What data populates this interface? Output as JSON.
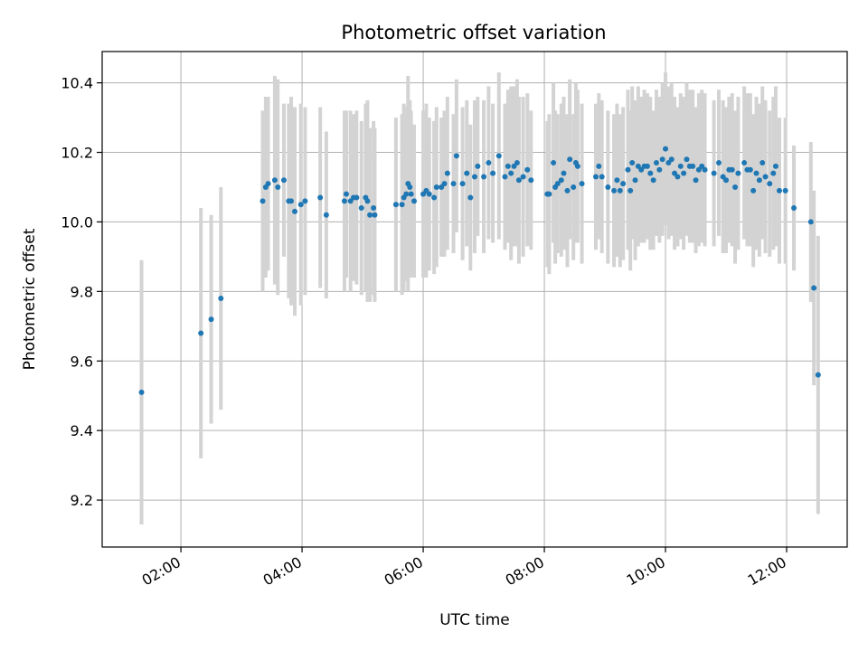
{
  "chart_data": {
    "type": "scatter",
    "title": "Photometric offset variation",
    "xlabel": "UTC time",
    "ylabel": "Photometric offset",
    "x_unit": "hours UTC",
    "xlim": [
      0.7,
      13.0
    ],
    "ylim": [
      9.065,
      10.49
    ],
    "grid": true,
    "x_ticks": [
      {
        "value": 2,
        "label": "02:00"
      },
      {
        "value": 4,
        "label": "04:00"
      },
      {
        "value": 6,
        "label": "06:00"
      },
      {
        "value": 8,
        "label": "08:00"
      },
      {
        "value": 10,
        "label": "10:00"
      },
      {
        "value": 12,
        "label": "12:00"
      }
    ],
    "y_ticks": [
      9.2,
      9.4,
      9.6,
      9.8,
      10.0,
      10.2,
      10.4
    ],
    "colors": {
      "point": "#1f77b4",
      "errorbar": "#d3d3d3",
      "grid": "#b0b0b0"
    },
    "series": [
      {
        "name": "Photometric offset",
        "points": [
          [
            1.35,
            9.51,
            0.38
          ],
          [
            2.33,
            9.68,
            0.36
          ],
          [
            2.5,
            9.72,
            0.3
          ],
          [
            2.66,
            9.78,
            0.32
          ],
          [
            3.35,
            10.06,
            0.26
          ],
          [
            3.4,
            10.1,
            0.26
          ],
          [
            3.44,
            10.11,
            0.25
          ],
          [
            3.55,
            10.12,
            0.3
          ],
          [
            3.6,
            10.1,
            0.31
          ],
          [
            3.7,
            10.12,
            0.22
          ],
          [
            3.78,
            10.06,
            0.28
          ],
          [
            3.82,
            10.06,
            0.3
          ],
          [
            3.88,
            10.03,
            0.3
          ],
          [
            3.98,
            10.05,
            0.29
          ],
          [
            4.05,
            10.06,
            0.27
          ],
          [
            4.3,
            10.07,
            0.26
          ],
          [
            4.4,
            10.02,
            0.24
          ],
          [
            4.7,
            10.06,
            0.26
          ],
          [
            4.73,
            10.08,
            0.24
          ],
          [
            4.8,
            10.06,
            0.26
          ],
          [
            4.85,
            10.07,
            0.24
          ],
          [
            4.9,
            10.07,
            0.25
          ],
          [
            4.98,
            10.04,
            0.25
          ],
          [
            5.05,
            10.07,
            0.27
          ],
          [
            5.08,
            10.06,
            0.29
          ],
          [
            5.12,
            10.02,
            0.25
          ],
          [
            5.18,
            10.04,
            0.25
          ],
          [
            5.2,
            10.02,
            0.25
          ],
          [
            5.55,
            10.05,
            0.25
          ],
          [
            5.65,
            10.05,
            0.26
          ],
          [
            5.68,
            10.07,
            0.27
          ],
          [
            5.72,
            10.08,
            0.25
          ],
          [
            5.75,
            10.11,
            0.31
          ],
          [
            5.78,
            10.1,
            0.25
          ],
          [
            5.8,
            10.08,
            0.24
          ],
          [
            5.85,
            10.06,
            0.22
          ],
          [
            6.0,
            10.08,
            0.24
          ],
          [
            6.05,
            10.09,
            0.25
          ],
          [
            6.1,
            10.08,
            0.22
          ],
          [
            6.18,
            10.07,
            0.22
          ],
          [
            6.22,
            10.1,
            0.23
          ],
          [
            6.3,
            10.1,
            0.2
          ],
          [
            6.35,
            10.11,
            0.21
          ],
          [
            6.4,
            10.14,
            0.22
          ],
          [
            6.5,
            10.11,
            0.2
          ],
          [
            6.55,
            10.19,
            0.22
          ],
          [
            6.65,
            10.11,
            0.22
          ],
          [
            6.72,
            10.14,
            0.21
          ],
          [
            6.78,
            10.07,
            0.21
          ],
          [
            6.85,
            10.13,
            0.22
          ],
          [
            6.9,
            10.16,
            0.2
          ],
          [
            7.0,
            10.13,
            0.22
          ],
          [
            7.08,
            10.17,
            0.22
          ],
          [
            7.15,
            10.14,
            0.2
          ],
          [
            7.25,
            10.19,
            0.24
          ],
          [
            7.35,
            10.13,
            0.21
          ],
          [
            7.4,
            10.16,
            0.22
          ],
          [
            7.45,
            10.14,
            0.25
          ],
          [
            7.5,
            10.16,
            0.23
          ],
          [
            7.55,
            10.17,
            0.24
          ],
          [
            7.58,
            10.12,
            0.24
          ],
          [
            7.65,
            10.13,
            0.23
          ],
          [
            7.72,
            10.15,
            0.22
          ],
          [
            7.78,
            10.12,
            0.2
          ],
          [
            8.05,
            10.08,
            0.21
          ],
          [
            8.08,
            10.08,
            0.23
          ],
          [
            8.15,
            10.17,
            0.23
          ],
          [
            8.18,
            10.1,
            0.22
          ],
          [
            8.22,
            10.11,
            0.2
          ],
          [
            8.28,
            10.12,
            0.22
          ],
          [
            8.32,
            10.14,
            0.22
          ],
          [
            8.38,
            10.09,
            0.22
          ],
          [
            8.42,
            10.18,
            0.23
          ],
          [
            8.48,
            10.1,
            0.21
          ],
          [
            8.52,
            10.17,
            0.23
          ],
          [
            8.55,
            10.16,
            0.22
          ],
          [
            8.62,
            10.11,
            0.23
          ],
          [
            8.85,
            10.13,
            0.21
          ],
          [
            8.9,
            10.16,
            0.21
          ],
          [
            8.95,
            10.13,
            0.22
          ],
          [
            9.05,
            10.1,
            0.22
          ],
          [
            9.15,
            10.09,
            0.22
          ],
          [
            9.2,
            10.12,
            0.22
          ],
          [
            9.25,
            10.09,
            0.22
          ],
          [
            9.3,
            10.11,
            0.22
          ],
          [
            9.38,
            10.15,
            0.23
          ],
          [
            9.42,
            10.09,
            0.23
          ],
          [
            9.45,
            10.17,
            0.22
          ],
          [
            9.5,
            10.12,
            0.23
          ],
          [
            9.55,
            10.16,
            0.23
          ],
          [
            9.6,
            10.15,
            0.21
          ],
          [
            9.65,
            10.16,
            0.22
          ],
          [
            9.7,
            10.16,
            0.21
          ],
          [
            9.75,
            10.14,
            0.22
          ],
          [
            9.8,
            10.12,
            0.2
          ],
          [
            9.85,
            10.17,
            0.21
          ],
          [
            9.9,
            10.15,
            0.21
          ],
          [
            9.95,
            10.18,
            0.22
          ],
          [
            10.0,
            10.21,
            0.22
          ],
          [
            10.05,
            10.17,
            0.22
          ],
          [
            10.1,
            10.18,
            0.22
          ],
          [
            10.15,
            10.14,
            0.22
          ],
          [
            10.2,
            10.13,
            0.2
          ],
          [
            10.25,
            10.16,
            0.21
          ],
          [
            10.3,
            10.14,
            0.22
          ],
          [
            10.35,
            10.18,
            0.22
          ],
          [
            10.4,
            10.16,
            0.22
          ],
          [
            10.45,
            10.16,
            0.22
          ],
          [
            10.5,
            10.12,
            0.21
          ],
          [
            10.55,
            10.15,
            0.22
          ],
          [
            10.6,
            10.16,
            0.22
          ],
          [
            10.65,
            10.15,
            0.22
          ],
          [
            10.8,
            10.14,
            0.21
          ],
          [
            10.88,
            10.17,
            0.21
          ],
          [
            10.95,
            10.13,
            0.22
          ],
          [
            11.0,
            10.12,
            0.21
          ],
          [
            11.05,
            10.15,
            0.21
          ],
          [
            11.1,
            10.15,
            0.22
          ],
          [
            11.15,
            10.1,
            0.22
          ],
          [
            11.2,
            10.14,
            0.22
          ],
          [
            11.3,
            10.17,
            0.22
          ],
          [
            11.35,
            10.15,
            0.22
          ],
          [
            11.4,
            10.15,
            0.22
          ],
          [
            11.45,
            10.09,
            0.22
          ],
          [
            11.5,
            10.14,
            0.22
          ],
          [
            11.55,
            10.12,
            0.22
          ],
          [
            11.6,
            10.17,
            0.22
          ],
          [
            11.65,
            10.13,
            0.22
          ],
          [
            11.72,
            10.11,
            0.21
          ],
          [
            11.78,
            10.14,
            0.22
          ],
          [
            11.82,
            10.16,
            0.23
          ],
          [
            11.88,
            10.09,
            0.21
          ],
          [
            11.98,
            10.09,
            0.21
          ],
          [
            12.12,
            10.04,
            0.18
          ],
          [
            12.4,
            10.0,
            0.23
          ],
          [
            12.45,
            9.81,
            0.28
          ],
          [
            12.52,
            9.56,
            0.4
          ]
        ]
      }
    ]
  }
}
